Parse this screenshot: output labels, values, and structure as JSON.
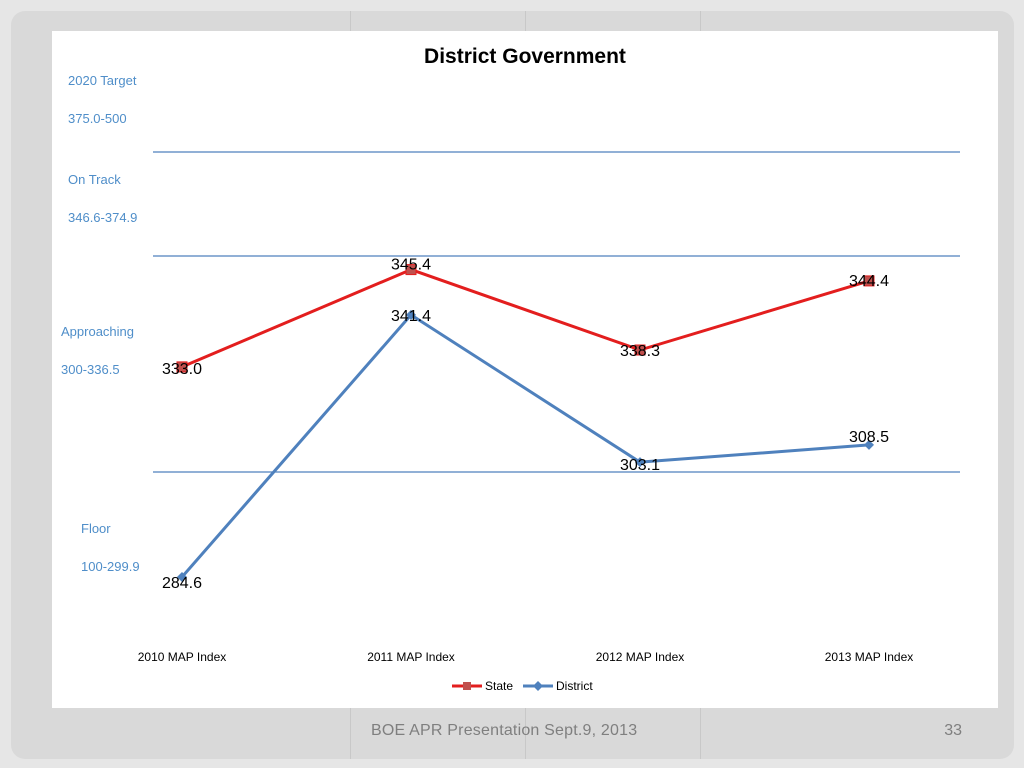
{
  "footer": {
    "presentation": "BOE APR Presentation Sept.9, 2013",
    "page_number": "33"
  },
  "bands": [
    {
      "title": "2020 Target",
      "range": "375.0-500"
    },
    {
      "title": "On Track",
      "range": "346.6-374.9"
    },
    {
      "title": "Approaching",
      "range": "300-336.5"
    },
    {
      "title": "Floor",
      "range": "100-299.9"
    }
  ],
  "colors": {
    "state": "#e31e1e",
    "district": "#4f81bd",
    "band_line": "#4f81bd",
    "band_text": "#4f8ec9"
  },
  "chart_data": {
    "type": "line",
    "title": "District Government",
    "categories": [
      "2010 MAP Index",
      "2011 MAP Index",
      "2012 MAP Index",
      "2013 MAP Index"
    ],
    "series": [
      {
        "name": "State",
        "values": [
          333.0,
          345.4,
          338.3,
          344.4
        ],
        "labels": [
          "333.0",
          "345.4",
          "338.3",
          "344.4"
        ],
        "marker": "square"
      },
      {
        "name": "District",
        "values": [
          284.6,
          341.4,
          303.1,
          308.5
        ],
        "labels": [
          "284.6",
          "341.4",
          "303.1",
          "308.5"
        ],
        "marker": "diamond"
      }
    ],
    "reference_lines": [
      375.0,
      346.6,
      300.0
    ],
    "legend": {
      "position": "bottom"
    },
    "grid": false
  }
}
